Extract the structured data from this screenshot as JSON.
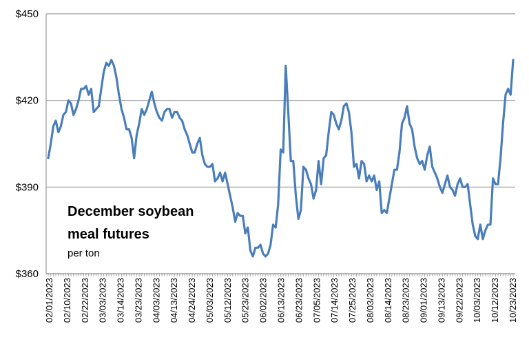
{
  "chart_data": {
    "type": "line",
    "title": "",
    "xlabel": "",
    "ylabel": "",
    "ylim": [
      360,
      450
    ],
    "y_ticks": [
      "$360",
      "$390",
      "$420",
      "$450"
    ],
    "y_tick_values": [
      360,
      390,
      420,
      450
    ],
    "x_tick_labels": [
      "02/01/2023",
      "02/10/2023",
      "02/22/2023",
      "03/03/2023",
      "03/14/2023",
      "03/23/2023",
      "04/03/2023",
      "04/13/2023",
      "04/24/2023",
      "05/03/2023",
      "05/12/2023",
      "05/23/2023",
      "06/02/2023",
      "06/13/2023",
      "06/23/2023",
      "07/05/2023",
      "07/14/2023",
      "07/25/2023",
      "08/03/2023",
      "08/14/2023",
      "08/23/2023",
      "09/01/2023",
      "09/13/2023",
      "09/22/2023",
      "10/03/2023",
      "10/12/2023",
      "10/23/2023"
    ],
    "grid": true,
    "annotation": {
      "title_line1": "December soybean",
      "title_line2": "meal futures",
      "subtitle": "per ton"
    },
    "colors": {
      "line": "#4a7ebb",
      "grid": "#999999"
    },
    "series": [
      {
        "name": "",
        "values": [
          400,
          405,
          411,
          413,
          409,
          411,
          415,
          416,
          420,
          419,
          415,
          417,
          420,
          424,
          424,
          425,
          422,
          424,
          416,
          417,
          418,
          424,
          430,
          433,
          432,
          434,
          432,
          428,
          422,
          417,
          414,
          410,
          410,
          407,
          400,
          408,
          412,
          417,
          415,
          417,
          420,
          423,
          419,
          416,
          414,
          413,
          416,
          417,
          417,
          414,
          416,
          416,
          414,
          413,
          410,
          408,
          405,
          402,
          402,
          405,
          407,
          401,
          398,
          397,
          397,
          398,
          392,
          393,
          395,
          392,
          395,
          391,
          387,
          383,
          378,
          381,
          380,
          380,
          374,
          376,
          368,
          366,
          369,
          369,
          370,
          367,
          366,
          367,
          370,
          377,
          376,
          384,
          403,
          402,
          432,
          416,
          399,
          399,
          387,
          379,
          382,
          397,
          396,
          393,
          391,
          386,
          389,
          399,
          391,
          400,
          401,
          409,
          416,
          415,
          412,
          410,
          413,
          418,
          419,
          416,
          409,
          397,
          398,
          393,
          399,
          398,
          392,
          394,
          392,
          394,
          389,
          392,
          381,
          382,
          381,
          386,
          391,
          396,
          396,
          402,
          412,
          414,
          418,
          412,
          410,
          404,
          400,
          398,
          399,
          396,
          401,
          404,
          397,
          395,
          393,
          390,
          388,
          391,
          394,
          390,
          389,
          387,
          391,
          393,
          390,
          390,
          391,
          384,
          377,
          373,
          372,
          377,
          372,
          375,
          377,
          377,
          393,
          391,
          391,
          400,
          412,
          422,
          424,
          422,
          434
        ]
      }
    ]
  }
}
